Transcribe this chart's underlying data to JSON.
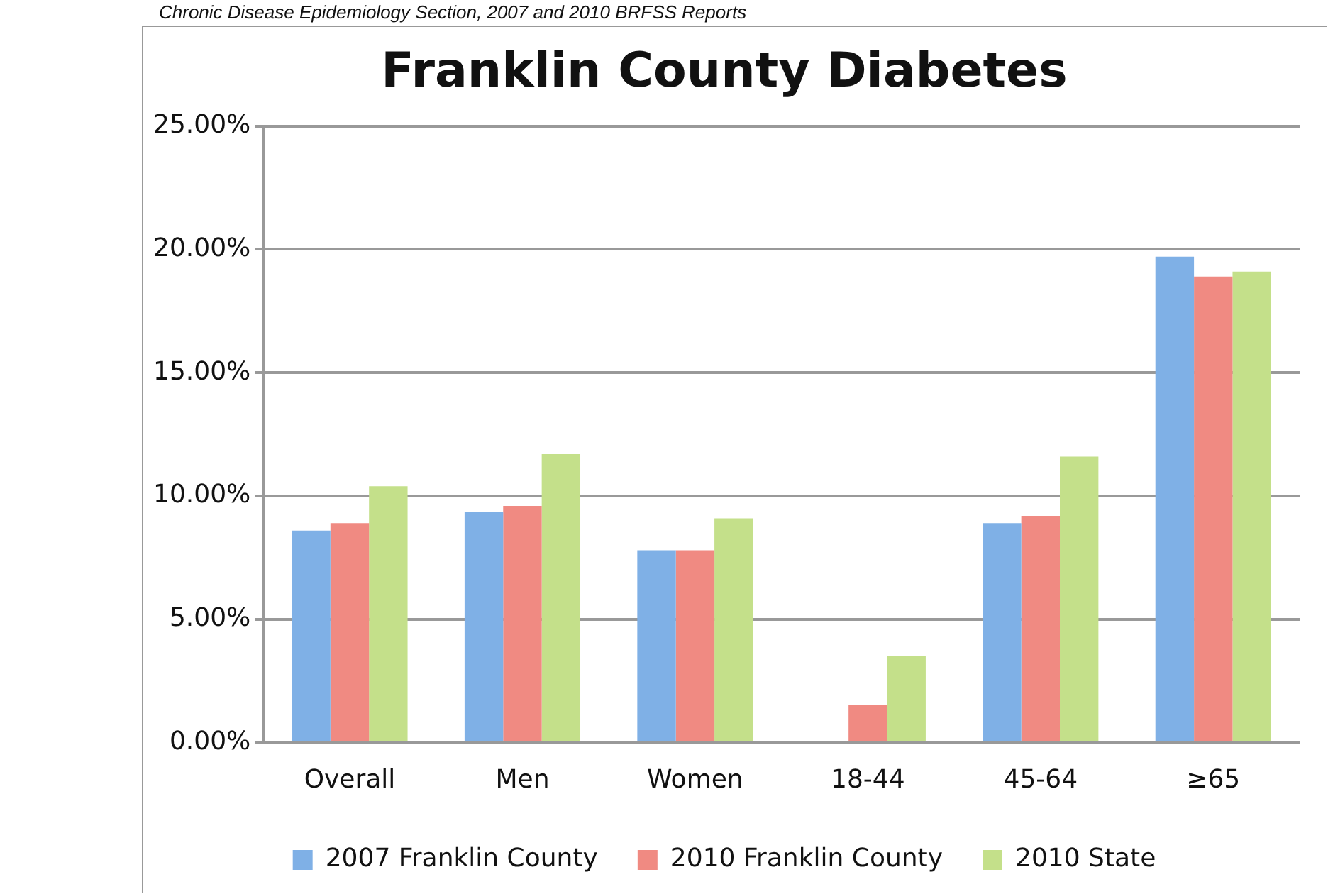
{
  "chart_data": {
    "type": "bar",
    "title": "Franklin County Diabetes",
    "annotations": [
      "Chronic Disease Epidemiology Section, 2007 and 2010 BRFSS Reports"
    ],
    "categories": [
      "Overall",
      "Men",
      "Women",
      "18-44",
      "45-64",
      "≥65"
    ],
    "series": [
      {
        "name": "2007 Franklin County",
        "color": "#7fb0e6",
        "values": [
          8.6,
          9.35,
          7.8,
          null,
          8.9,
          19.7
        ]
      },
      {
        "name": "2010 Franklin County",
        "color": "#f08a82",
        "values": [
          8.9,
          9.6,
          7.8,
          1.55,
          9.2,
          18.9
        ]
      },
      {
        "name": "2010 State",
        "color": "#c4e08a",
        "values": [
          10.4,
          11.7,
          9.1,
          3.5,
          11.6,
          19.1
        ]
      }
    ],
    "ylim": [
      0,
      25
    ],
    "yticks": [
      {
        "value": 0,
        "label": "0.00%"
      },
      {
        "value": 5,
        "label": "5.00%"
      },
      {
        "value": 10,
        "label": "10.00%"
      },
      {
        "value": 15,
        "label": "15.00%"
      },
      {
        "value": 20,
        "label": "20.00%"
      },
      {
        "value": 25,
        "label": "25.00%"
      }
    ],
    "grid": "y",
    "legend": "bottom"
  }
}
